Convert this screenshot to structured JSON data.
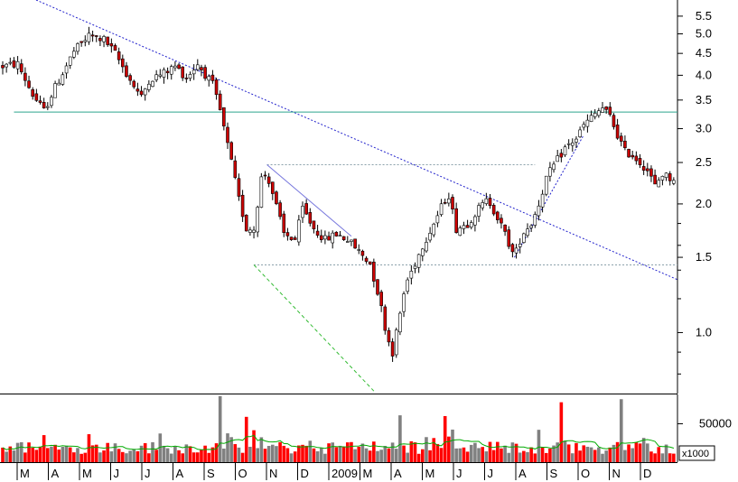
{
  "chart_data": [
    {
      "type": "candlestick",
      "title": "",
      "y_scale": "log",
      "ylim": [
        0.72,
        6.0
      ],
      "y_ticks": [
        1.0,
        1.5,
        2.0,
        2.5,
        3.0,
        3.5,
        4.0,
        4.5,
        5.0,
        5.5
      ],
      "y_tick_labels": [
        "1.0",
        "1.5",
        "2.0",
        "2.5",
        "3.0",
        "3.5",
        "4.0",
        "4.5",
        "5.0",
        "5.5"
      ],
      "x_tick_labels": [
        "M",
        "A",
        "M",
        "J",
        "J",
        "A",
        "S",
        "O",
        "N",
        "D",
        "2009",
        "M",
        "A",
        "M",
        "J",
        "J",
        "A",
        "S",
        "O",
        "N",
        "D"
      ],
      "price_path": [
        [
          0,
          4.2
        ],
        [
          4,
          4.25
        ],
        [
          8,
          3.6
        ],
        [
          11,
          3.3
        ],
        [
          14,
          3.75
        ],
        [
          19,
          4.55
        ],
        [
          23,
          4.95
        ],
        [
          27,
          4.85
        ],
        [
          30,
          4.5
        ],
        [
          34,
          3.9
        ],
        [
          37,
          3.55
        ],
        [
          39,
          3.9
        ],
        [
          43,
          4.05
        ],
        [
          46,
          4.2
        ],
        [
          49,
          3.95
        ],
        [
          52,
          4.25
        ],
        [
          56,
          3.8
        ],
        [
          58,
          3.3
        ],
        [
          61,
          2.5
        ],
        [
          63,
          2.05
        ],
        [
          65,
          1.75
        ],
        [
          67,
          1.75
        ],
        [
          69,
          2.3
        ],
        [
          70.5,
          2.35
        ],
        [
          72.5,
          2.05
        ],
        [
          75,
          1.7
        ],
        [
          78,
          1.65
        ],
        [
          80,
          1.95
        ],
        [
          83,
          1.75
        ],
        [
          86,
          1.65
        ],
        [
          89,
          1.7
        ],
        [
          92,
          1.65
        ],
        [
          95,
          1.55
        ],
        [
          98,
          1.45
        ],
        [
          100.5,
          1.2
        ],
        [
          102.5,
          0.98
        ],
        [
          104,
          0.9
        ],
        [
          105.5,
          1.05
        ],
        [
          107.5,
          1.3
        ],
        [
          109.5,
          1.42
        ],
        [
          112,
          1.6
        ],
        [
          115,
          1.8
        ],
        [
          118,
          2.05
        ],
        [
          119,
          2.1
        ],
        [
          121,
          1.75
        ],
        [
          124,
          1.8
        ],
        [
          127,
          1.95
        ],
        [
          129.5,
          2.05
        ],
        [
          131.5,
          1.9
        ],
        [
          134,
          1.7
        ],
        [
          136.5,
          1.5
        ],
        [
          138.5,
          1.7
        ],
        [
          141,
          1.8
        ],
        [
          143,
          2.0
        ],
        [
          145,
          2.3
        ],
        [
          147.5,
          2.5
        ],
        [
          150,
          2.7
        ],
        [
          153,
          2.85
        ],
        [
          155,
          3.05
        ],
        [
          158,
          3.25
        ],
        [
          160,
          3.35
        ],
        [
          162,
          3.2
        ],
        [
          164,
          2.9
        ],
        [
          166,
          2.65
        ],
        [
          168,
          2.6
        ],
        [
          170,
          2.5
        ],
        [
          172,
          2.4
        ],
        [
          174,
          2.2
        ],
        [
          176,
          2.35
        ],
        [
          178,
          2.3
        ]
      ],
      "trendlines": [
        {
          "style": "dotted",
          "color": "#2222cc",
          "points": [
            [
              2009.0,
              6.0
            ],
            [
              180.0,
              1.33
            ]
          ]
        },
        {
          "style": "solid",
          "color": "#2ca58d",
          "points": [
            [
              3,
              3.28
            ],
            [
              180,
              3.28
            ]
          ]
        },
        {
          "style": "dotted",
          "color": "#8aa0aa",
          "points": [
            [
              70.5,
              2.47
            ],
            [
              142,
              2.47
            ]
          ]
        },
        {
          "style": "dotted",
          "color": "#8aa0aa",
          "points": [
            [
              67,
              1.44
            ],
            [
              180,
              1.44
            ]
          ]
        },
        {
          "style": "solid",
          "color": "#7777dd",
          "points": [
            [
              70.5,
              2.47
            ],
            [
              93,
              1.68
            ]
          ]
        },
        {
          "style": "dashed",
          "color": "#33bb33",
          "points": [
            [
              67,
              1.44
            ],
            [
              99,
              0.73
            ]
          ]
        },
        {
          "style": "dotted",
          "color": "#2222cc",
          "points": [
            [
              136.5,
              1.5
            ],
            [
              155,
              2.9
            ]
          ]
        }
      ],
      "colors": {
        "down": "#cc0000",
        "up": "#000000",
        "border": "#000000"
      }
    },
    {
      "type": "bar",
      "ylim": [
        0,
        87000
      ],
      "y_tick_labels": [
        "50000"
      ],
      "y_ticks": [
        50000
      ],
      "unit_label": "x1000",
      "base_level": 18000,
      "spikes": [
        [
          57.8,
          86000
        ],
        [
          64.8,
          59000
        ],
        [
          106,
          61000
        ],
        [
          118,
          60000
        ],
        [
          148.5,
          78000
        ],
        [
          164.6,
          82000
        ]
      ],
      "colors": {
        "bar": "#ff0000",
        "bar_alt": "#808080",
        "avg_line": "#00aa00"
      }
    }
  ]
}
